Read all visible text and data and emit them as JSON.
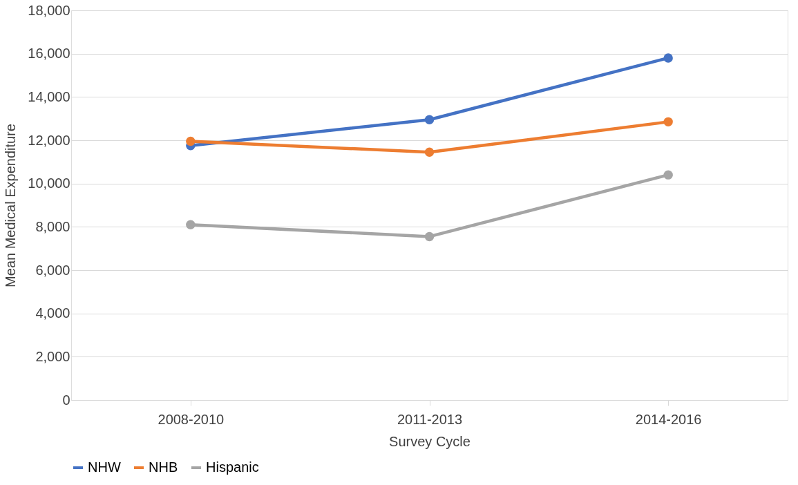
{
  "chart_data": {
    "type": "line",
    "xlabel": "Survey Cycle",
    "ylabel": "Mean Medical Expenditure",
    "categories": [
      "2008-2010",
      "2011-2013",
      "2014-2016"
    ],
    "series": [
      {
        "name": "NHW",
        "color": "#4472c4",
        "values": [
          11750,
          12950,
          15800
        ]
      },
      {
        "name": "NHB",
        "color": "#ed7d31",
        "values": [
          11950,
          11450,
          12850
        ]
      },
      {
        "name": "Hispanic",
        "color": "#a5a5a5",
        "values": [
          8100,
          7550,
          10400
        ]
      }
    ],
    "ylim": [
      0,
      18000
    ],
    "yticks": [
      0,
      {
        "value": 2000,
        "label": "2,000"
      },
      {
        "value": 4000,
        "label": "4,000"
      },
      {
        "value": 6000,
        "label": "6,000"
      },
      {
        "value": 8000,
        "label": "8,000"
      },
      {
        "value": 10000,
        "label": "10,000"
      },
      {
        "value": 12000,
        "label": "12,000"
      },
      {
        "value": 14000,
        "label": "14,000"
      },
      {
        "value": 16000,
        "label": "16,000"
      },
      {
        "value": 18000,
        "label": "18,000"
      }
    ],
    "grid": "y",
    "legend": "bottom",
    "marker": "circle",
    "line_style": "solid"
  }
}
